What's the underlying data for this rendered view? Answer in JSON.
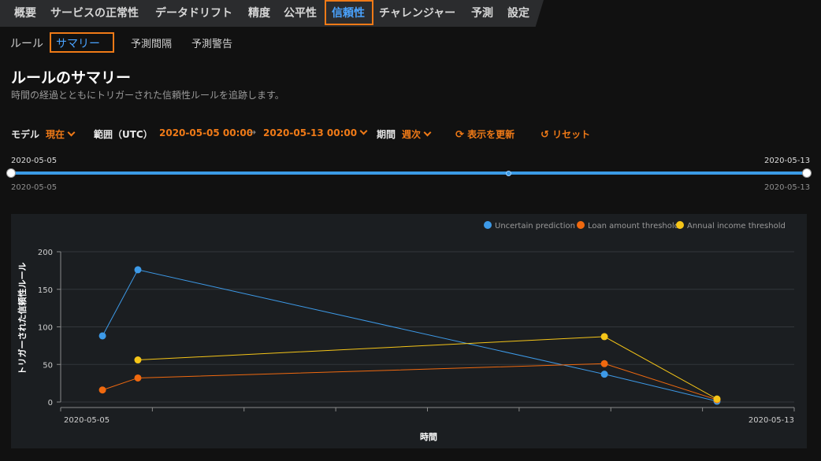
{
  "top_nav": {
    "tabs": [
      {
        "label": "概要"
      },
      {
        "label": "サービスの正常性"
      },
      {
        "label": "データドリフト"
      },
      {
        "label": "精度"
      },
      {
        "label": "公平性"
      },
      {
        "label": "信頼性"
      },
      {
        "label": "チャレンジャー"
      },
      {
        "label": "予測"
      },
      {
        "label": "設定"
      }
    ],
    "active": "信頼性"
  },
  "sub_nav": {
    "tabs": [
      {
        "label": "ルール"
      },
      {
        "label": "サマリー"
      },
      {
        "label": "予測間隔"
      },
      {
        "label": "予測警告"
      }
    ],
    "active": "サマリー"
  },
  "page": {
    "title": "ルールのサマリー",
    "description": "時間の経過とともにトリガーされた信頼性ルールを追跡します。"
  },
  "controls": {
    "model_label": "モデル",
    "model_value": "現在",
    "range_label": "範囲（UTC）",
    "range_start": "2020-05-05  00:00",
    "range_end": "2020-05-13  00:00",
    "period_label": "期間",
    "period_value": "週次",
    "refresh_label": "表示を更新",
    "reset_label": "リセット"
  },
  "range_slider": {
    "start_top": "2020-05-05",
    "end_top": "2020-05-13",
    "start_bottom": "2020-05-05",
    "end_bottom": "2020-05-13"
  },
  "colors": {
    "accent_orange": "#f07a17",
    "active_blue": "#4aa3ff",
    "series_blue": "#3d9ae8",
    "series_orange": "#f0690f",
    "series_yellow": "#f5c518"
  },
  "chart_data": {
    "type": "line",
    "xlabel": "時間",
    "ylabel": "トリガーされた信頼性ルール",
    "ylim": [
      0,
      200
    ],
    "yticks": [
      0,
      50,
      100,
      150,
      200
    ],
    "x_tick_labels": [
      "2020-05-05",
      "2020-05-13"
    ],
    "xlim": [
      "2020-05-05",
      "2020-05-13"
    ],
    "grid": true,
    "legend_position": "top-right",
    "series": [
      {
        "name": "Uncertain prediction",
        "color": "#3d9ae8",
        "points": [
          {
            "x": "2020-05-05 13:00",
            "y": 88
          },
          {
            "x": "2020-05-06 00:00",
            "y": 176
          },
          {
            "x": "2020-05-12 01:00",
            "y": 37
          },
          {
            "x": "2020-05-13 12:00",
            "y": 1
          }
        ]
      },
      {
        "name": "Loan amount threshold",
        "color": "#f0690f",
        "points": [
          {
            "x": "2020-05-05 13:00",
            "y": 16
          },
          {
            "x": "2020-05-06 00:00",
            "y": 32
          },
          {
            "x": "2020-05-12 01:00",
            "y": 51
          },
          {
            "x": "2020-05-13 12:00",
            "y": 3
          }
        ]
      },
      {
        "name": "Annual income threshold",
        "color": "#f5c518",
        "points": [
          {
            "x": "2020-05-06 00:00",
            "y": 56
          },
          {
            "x": "2020-05-12 01:00",
            "y": 87
          },
          {
            "x": "2020-05-13 12:00",
            "y": 4
          }
        ]
      }
    ]
  }
}
